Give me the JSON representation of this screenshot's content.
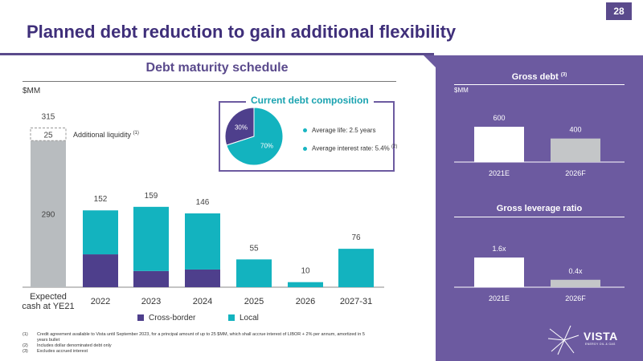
{
  "page_number": "28",
  "title": "Planned debt reduction to gain additional flexibility",
  "colors": {
    "cross_border": "#4e3f8c",
    "local": "#13b3bf",
    "cash": "#b8bcbf",
    "panel": "#6c5aa0",
    "title": "#3f2f7a"
  },
  "chart_data": [
    {
      "type": "bar",
      "stacked": true,
      "title": "Debt maturity schedule",
      "ylabel": "$MM",
      "categories": [
        "Expected\ncash at YE21",
        "2022",
        "2023",
        "2024",
        "2025",
        "2026",
        "2027-31"
      ],
      "series": [
        {
          "name": "Cash",
          "values": [
            290,
            0,
            0,
            0,
            0,
            0,
            0
          ]
        },
        {
          "name": "Additional liquidity",
          "values": [
            25,
            0,
            0,
            0,
            0,
            0,
            0
          ]
        },
        {
          "name": "Cross-border",
          "values": [
            0,
            65,
            32,
            35,
            0,
            0,
            0
          ]
        },
        {
          "name": "Local",
          "values": [
            0,
            87,
            127,
            111,
            55,
            10,
            76
          ]
        }
      ],
      "totals": [
        315,
        152,
        159,
        146,
        55,
        10,
        76
      ],
      "segment_labels": {
        "cash": "290",
        "additional_liquidity": "25"
      },
      "ylim": [
        0,
        340
      ],
      "legend": [
        "Cross-border",
        "Local"
      ],
      "legend_position": "bottom",
      "annotation": "Additional liquidity",
      "annotation_note": "(1)"
    },
    {
      "type": "pie",
      "title": "Current debt composition",
      "slices": [
        {
          "label": "30%",
          "value": 30,
          "color": "#4e3f8c"
        },
        {
          "label": "70%",
          "value": 70,
          "color": "#13b3bf"
        }
      ],
      "bullets": [
        {
          "text": "Average life: 2.5 years",
          "note": ""
        },
        {
          "text": "Average interest rate: 5.4%",
          "note": "(2)"
        }
      ]
    },
    {
      "type": "bar",
      "title": "Gross debt",
      "title_note": "(3)",
      "ylabel": "$MM",
      "categories": [
        "2021E",
        "2026F"
      ],
      "values": [
        600,
        400
      ],
      "value_labels": [
        "600",
        "400"
      ],
      "ylim": [
        0,
        600
      ]
    },
    {
      "type": "bar",
      "title": "Gross leverage ratio",
      "categories": [
        "2021E",
        "2026F"
      ],
      "values": [
        1.6,
        0.4
      ],
      "value_labels": [
        "1.6x",
        "0.4x"
      ],
      "ylim": [
        0,
        1.6
      ]
    }
  ],
  "footnotes": [
    {
      "num": "(1)",
      "text": "Credit agreement available to Vista until September 2023, for a principal amount of up to 25 $MM, which shall accrue interest of LIBOR + 2% per annum, amortized in 5 years bullet"
    },
    {
      "num": "(2)",
      "text": "Includes dollar denominated debt only"
    },
    {
      "num": "(3)",
      "text": "Excludes accrued interest"
    }
  ],
  "logo": {
    "text": "VISTA",
    "subtext": "ENERGY OIL & GAS"
  }
}
